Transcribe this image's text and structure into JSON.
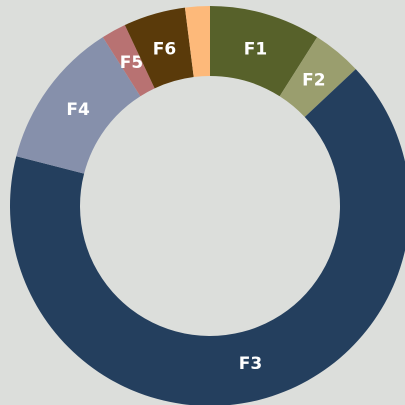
{
  "chart_data": {
    "type": "donut",
    "categories": [
      "F1",
      "F2",
      "F3",
      "F4",
      "F5",
      "F6",
      null
    ],
    "values": [
      9,
      4,
      66,
      12,
      2,
      5,
      2
    ],
    "colors": [
      "#57612a",
      "#9a9e6e",
      "#243f5e",
      "#8690ab",
      "#b87272",
      "#5a3a0a",
      "#fdb97a"
    ]
  }
}
